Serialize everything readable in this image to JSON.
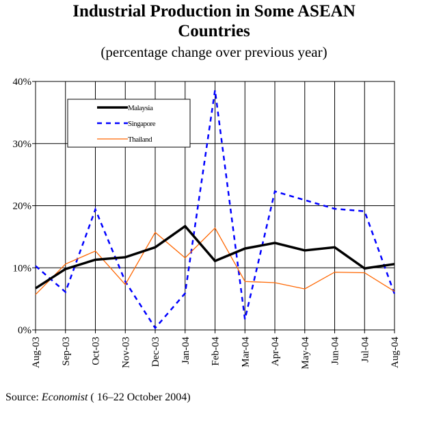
{
  "chart_data": {
    "type": "line",
    "title": "Industrial Production in Some ASEAN Countries",
    "title_line1": "Industrial Production in Some ASEAN",
    "title_line2": "Countries",
    "subtitle": "(percentage change over previous year)",
    "categories": [
      "Aug-03",
      "Sep-03",
      "Oct-03",
      "Nov-03",
      "Dec-03",
      "Jan-04",
      "Feb-04",
      "Mar-04",
      "Apr-04",
      "May-04",
      "Jun-04",
      "Jul-04",
      "Aug-04"
    ],
    "ylim": [
      0,
      40
    ],
    "yticks": [
      0,
      10,
      20,
      30,
      40
    ],
    "ytick_labels": [
      "0%",
      "10%",
      "20%",
      "30%",
      "40%"
    ],
    "grid": true,
    "legend_position": "top-left",
    "series": [
      {
        "name": "Malaysia",
        "color": "#000000",
        "style": "solid-thick",
        "values": [
          6.7,
          9.8,
          11.3,
          11.7,
          13.3,
          16.7,
          11.1,
          13.1,
          14.0,
          12.8,
          13.3,
          9.9,
          10.6
        ]
      },
      {
        "name": "Singapore",
        "color": "#0000ff",
        "style": "dashed",
        "values": [
          10.3,
          6.1,
          19.4,
          7.8,
          0.3,
          5.9,
          38.6,
          1.7,
          22.3,
          20.9,
          19.5,
          19.1,
          5.8
        ]
      },
      {
        "name": "Thailand",
        "color": "#ff6600",
        "style": "solid-thin",
        "values": [
          5.7,
          10.6,
          12.7,
          7.3,
          15.7,
          11.6,
          16.4,
          7.8,
          7.6,
          6.6,
          9.3,
          9.2,
          6.2
        ]
      }
    ]
  },
  "source": {
    "prefix": "Source: ",
    "publication": "Economist",
    "suffix": " ( 16–22 October 2004)"
  }
}
